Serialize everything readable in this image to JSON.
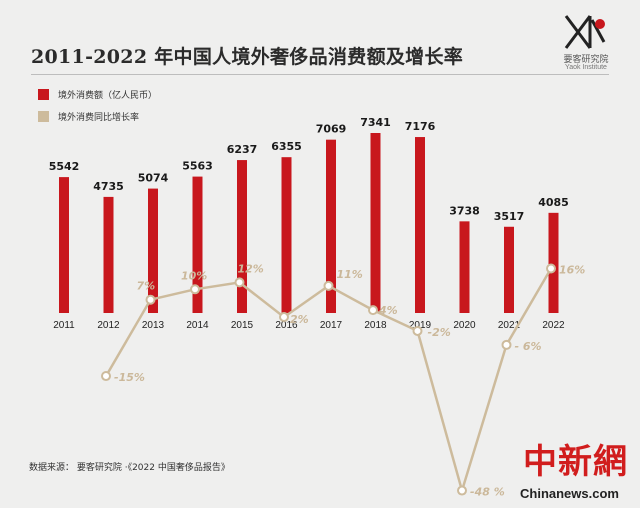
{
  "title": "2011-2022 年中国人境外奢侈品消费额及增长率",
  "logo": {
    "name": "要客研究院",
    "sub": "Yaok Institute"
  },
  "legend": [
    {
      "label": "境外消费额（亿人民币）",
      "color": "#c8171d"
    },
    {
      "label": "境外消费同比增长率",
      "color": "#cdbb9c"
    }
  ],
  "source": "数据来源：  要客研究院  ·《2022 中国奢侈品报告》",
  "watermark": {
    "cn": "中新網",
    "en": "Chinanews.com"
  },
  "chart_data": {
    "type": "bar",
    "categories": [
      "2011",
      "2012",
      "2013",
      "2014",
      "2015",
      "2016",
      "2017",
      "2018",
      "2019",
      "2020",
      "2021",
      "2022"
    ],
    "series": [
      {
        "name": "境外消费额（亿人民币）",
        "type": "bar",
        "color": "#c8171d",
        "values": [
          5542,
          4735,
          5074,
          5563,
          6237,
          6355,
          7069,
          7341,
          7176,
          3738,
          3517,
          4085
        ],
        "value_labels": [
          "5542",
          "4735",
          "5074",
          "5563",
          "6237",
          "6355",
          "7069",
          "7341",
          "7176",
          "3738",
          "3517",
          "4085"
        ]
      },
      {
        "name": "境外消费同比增长率",
        "type": "line",
        "color": "#cdbb9c",
        "values": [
          null,
          -15,
          7,
          10,
          12,
          2,
          11,
          4,
          -2,
          -48,
          -6,
          16
        ],
        "value_labels": [
          "",
          "-15%",
          "7%",
          "10%",
          "12%",
          "2%",
          "11%",
          "4%",
          "-2%",
          "-48 %",
          "- 6%",
          "16%"
        ]
      }
    ],
    "grid": false,
    "legend_position": "top-left"
  }
}
